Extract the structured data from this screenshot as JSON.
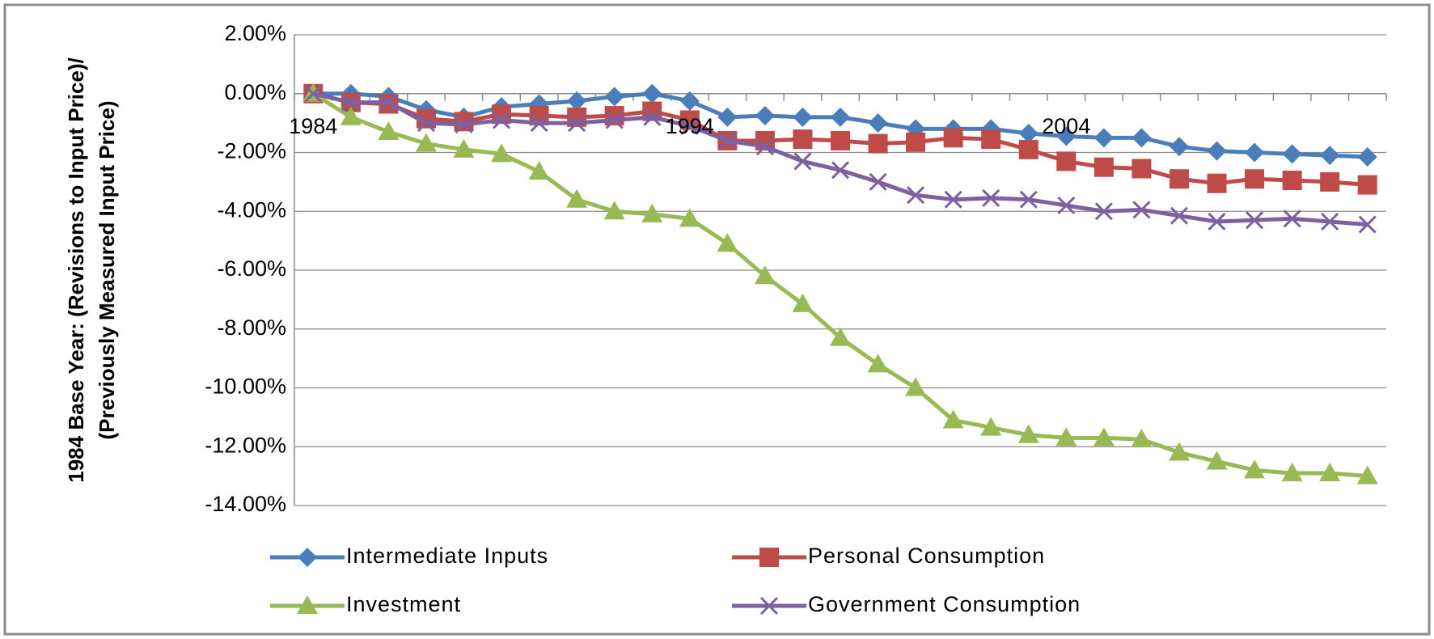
{
  "chart_data": {
    "type": "line",
    "y_label": [
      "1984 Base Year: (Revisions to Input Price)/",
      "(Previously Measured Input Price)"
    ],
    "categories": [
      "1984",
      null,
      null,
      null,
      null,
      null,
      null,
      null,
      null,
      null,
      "1994",
      null,
      null,
      null,
      null,
      null,
      null,
      null,
      null,
      null,
      "2004",
      null,
      null,
      null,
      null,
      null,
      null,
      null,
      null
    ],
    "series": [
      {
        "name": "Intermediate Inputs",
        "color": "#4a7ebb",
        "marker": "diamond",
        "values": [
          0,
          0,
          -0.1,
          -0.55,
          -0.8,
          -0.45,
          -0.35,
          -0.25,
          -0.1,
          0,
          -0.25,
          -0.8,
          -0.75,
          -0.8,
          -0.8,
          -1.0,
          -1.2,
          -1.2,
          -1.2,
          -1.35,
          -1.45,
          -1.5,
          -1.5,
          -1.8,
          -1.95,
          -2.0,
          -2.05,
          -2.1,
          -2.15
        ]
      },
      {
        "name": "Personal Consumption",
        "color": "#be4b48",
        "marker": "square",
        "values": [
          0,
          -0.3,
          -0.35,
          -0.85,
          -0.95,
          -0.7,
          -0.75,
          -0.8,
          -0.75,
          -0.6,
          -0.9,
          -1.6,
          -1.6,
          -1.55,
          -1.6,
          -1.7,
          -1.65,
          -1.5,
          -1.55,
          -1.9,
          -2.3,
          -2.5,
          -2.55,
          -2.9,
          -3.05,
          -2.9,
          -2.95,
          -3.0,
          -3.1
        ]
      },
      {
        "name": "Investment",
        "color": "#98b954",
        "marker": "triangle",
        "values": [
          0,
          -0.8,
          -1.3,
          -1.7,
          -1.9,
          -2.05,
          -2.65,
          -3.6,
          -4.0,
          -4.1,
          -4.25,
          -5.1,
          -6.2,
          -7.15,
          -8.3,
          -9.2,
          -10.0,
          -11.1,
          -11.35,
          -11.6,
          -11.7,
          -11.7,
          -11.75,
          -12.2,
          -12.5,
          -12.8,
          -12.9,
          -12.9,
          -13.0
        ]
      },
      {
        "name": "Government Consumption",
        "color": "#7d60a0",
        "marker": "x",
        "values": [
          0,
          -0.3,
          -0.3,
          -1.0,
          -1.05,
          -0.9,
          -1.0,
          -1.0,
          -0.9,
          -0.8,
          -1.1,
          -1.6,
          -1.8,
          -2.3,
          -2.6,
          -3.0,
          -3.45,
          -3.6,
          -3.55,
          -3.6,
          -3.8,
          -4.0,
          -3.95,
          -4.15,
          -4.35,
          -4.3,
          -4.25,
          -4.35,
          -4.45
        ]
      }
    ],
    "ylim": [
      -14,
      2
    ],
    "yticks": [
      {
        "value": -14,
        "label": "-14.00%"
      },
      {
        "value": -12,
        "label": "-12.00%"
      },
      {
        "value": -10,
        "label": "-10.00%"
      },
      {
        "value": -8,
        "label": "-8.00%"
      },
      {
        "value": -6,
        "label": "-6.00%"
      },
      {
        "value": -4,
        "label": "-4.00%"
      },
      {
        "value": -2,
        "label": "-2.00%"
      },
      {
        "value": 0,
        "label": "0.00%"
      },
      {
        "value": 2,
        "label": "2.00%"
      }
    ],
    "grid": true,
    "legend": "bottom"
  }
}
